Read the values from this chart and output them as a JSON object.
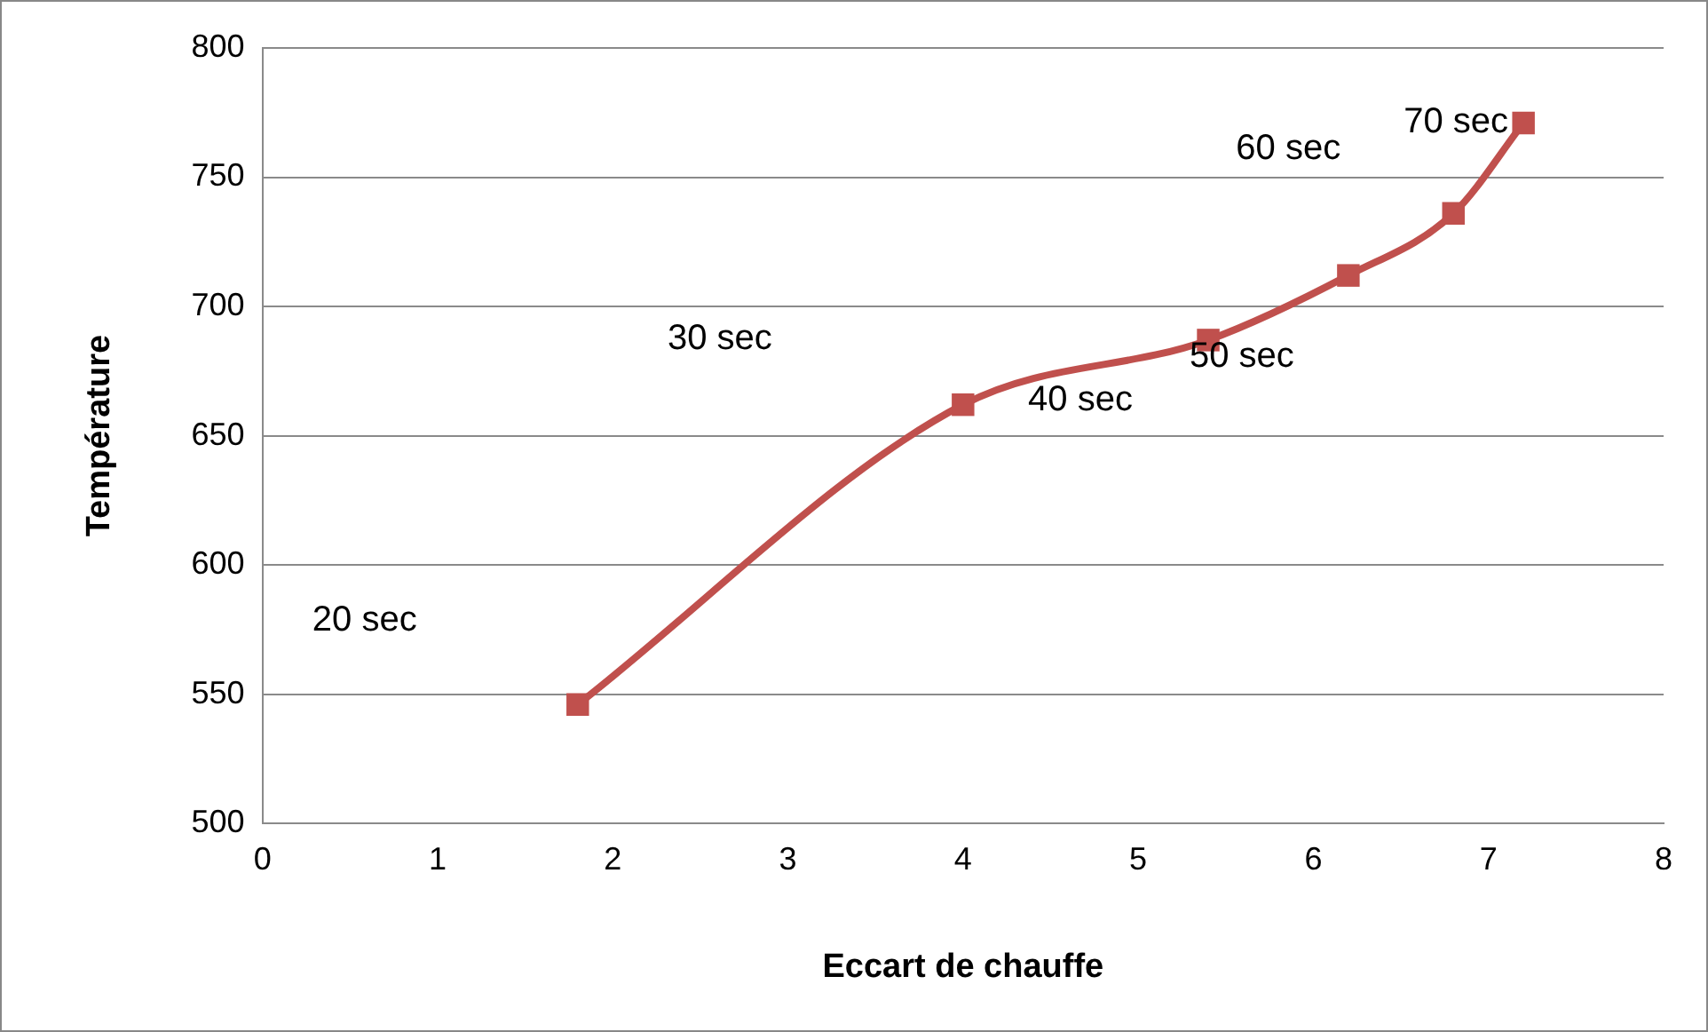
{
  "chart_data": {
    "type": "line",
    "xlabel": "Eccart de chauffe",
    "ylabel": "Température",
    "x": [
      1.8,
      4.0,
      5.4,
      6.2,
      6.8,
      7.2
    ],
    "series": [
      {
        "color": "#c0504d",
        "values": [
          546,
          662,
          687,
          712,
          736,
          771
        ]
      }
    ],
    "xlim": [
      0,
      8
    ],
    "xticks": [
      0,
      1,
      2,
      3,
      4,
      5,
      6,
      7,
      8
    ],
    "ylim": [
      500,
      800
    ],
    "yticks": [
      500,
      550,
      600,
      650,
      700,
      750,
      800
    ],
    "grid": "y",
    "legend": false,
    "marker": "square",
    "line_style": "solid",
    "annotations": [
      "20 sec",
      "30 sec",
      "40 sec",
      "50 sec",
      "60 sec",
      "70 sec"
    ]
  }
}
